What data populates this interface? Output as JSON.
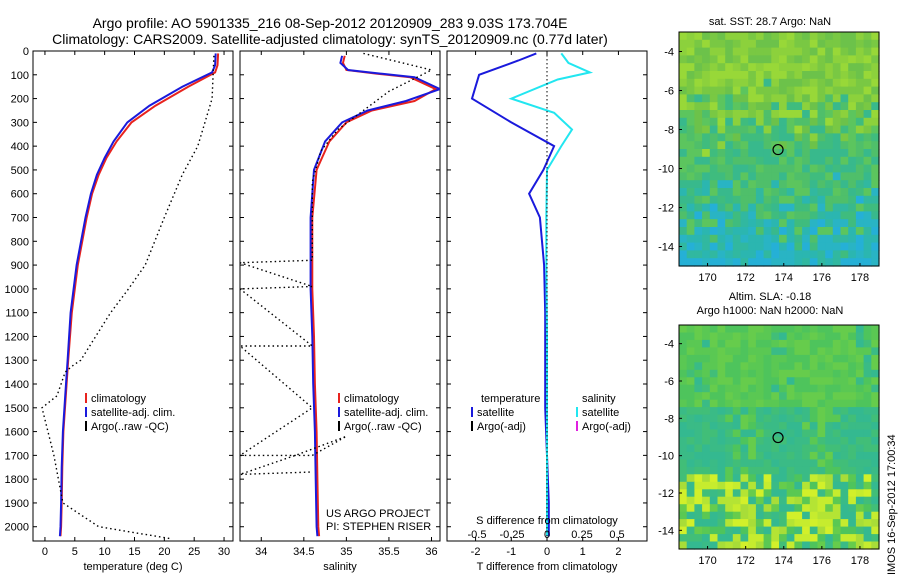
{
  "title": {
    "line1": "Argo profile: AO 5901335_216 08-Sep-2012 20120909_283 9.03S 173.704E",
    "line2": "Climatology: CARS2009. Satellite-adjusted climatology: synTS_20120909.nc (0.77d later)"
  },
  "colors": {
    "climatology": "#e8231e",
    "satellite": "#1a1adc",
    "argo": "#000000",
    "satellite_s": "#22e6f0",
    "argo_s": "#e020e0"
  },
  "chart_data": [
    {
      "type": "line",
      "id": "temperature",
      "xlabel": "temperature (deg C)",
      "ylabel": "",
      "xlim": [
        -2,
        31.5
      ],
      "ylim": [
        2060,
        0
      ],
      "xticks": [
        0,
        5,
        10,
        15,
        20,
        25,
        30
      ],
      "yticks": [
        0,
        100,
        200,
        300,
        400,
        500,
        600,
        700,
        800,
        900,
        1000,
        1100,
        1200,
        1300,
        1400,
        1500,
        1600,
        1700,
        1800,
        1900,
        2000
      ],
      "series": [
        {
          "name": "climatology",
          "style": "solid",
          "color": "#e8231e",
          "x": [
            29.0,
            28.9,
            28.5,
            24.0,
            18.5,
            14.5,
            12.0,
            10.3,
            9.0,
            7.9,
            7.0,
            5.5,
            4.5,
            3.9,
            3.5,
            3.1,
            2.9,
            2.8,
            2.7,
            2.6
          ],
          "y": [
            10,
            60,
            90,
            150,
            230,
            300,
            380,
            450,
            520,
            600,
            700,
            900,
            1100,
            1300,
            1450,
            1600,
            1750,
            1900,
            2000,
            2040
          ]
        },
        {
          "name": "satellite-adj. clim.",
          "style": "solid",
          "color": "#1a1adc",
          "x": [
            28.6,
            28.5,
            28.0,
            23.0,
            17.5,
            13.8,
            11.5,
            10.0,
            8.7,
            7.7,
            6.8,
            5.3,
            4.3,
            3.8,
            3.4,
            3.0,
            2.8,
            2.7,
            2.6,
            2.5
          ],
          "y": [
            10,
            60,
            90,
            150,
            230,
            300,
            380,
            450,
            520,
            600,
            700,
            900,
            1100,
            1300,
            1450,
            1600,
            1750,
            1900,
            2000,
            2040
          ]
        },
        {
          "name": "Argo(..raw -QC)",
          "style": "dotted",
          "color": "#000000",
          "x": [
            28.3,
            28.0,
            25.6,
            23.0,
            20.0,
            16.8,
            14.0,
            11.0,
            8.5,
            6.0,
            4.8,
            3.4,
            2.0,
            -0.5,
            1.5,
            3.0,
            9.0,
            21.0
          ],
          "y": [
            20,
            200,
            400,
            520,
            700,
            900,
            1000,
            1100,
            1200,
            1300,
            1320,
            1350,
            1450,
            1500,
            1700,
            1900,
            2000,
            2050
          ]
        }
      ]
    },
    {
      "type": "line",
      "id": "salinity",
      "xlabel": "salinity",
      "ylabel": "",
      "xlim": [
        33.75,
        36.1
      ],
      "ylim": [
        2060,
        0
      ],
      "xticks": [
        34,
        34.5,
        35,
        35.5,
        36
      ],
      "xticklabels": [
        "34",
        "34.5",
        "35",
        "35.5",
        "36"
      ],
      "series": [
        {
          "name": "climatology",
          "style": "solid",
          "color": "#e8231e",
          "x": [
            34.98,
            34.96,
            35.0,
            35.35,
            35.75,
            36.05,
            35.8,
            35.3,
            35.0,
            34.8,
            34.65,
            34.6,
            34.6,
            34.6,
            34.62,
            34.63,
            34.65,
            34.66,
            34.67,
            34.68
          ],
          "y": [
            20,
            50,
            80,
            95,
            110,
            160,
            210,
            250,
            300,
            380,
            500,
            700,
            850,
            1000,
            1200,
            1400,
            1600,
            1800,
            2000,
            2040
          ]
        },
        {
          "name": "satellite-adj. clim.",
          "style": "solid",
          "color": "#1a1adc",
          "x": [
            34.95,
            34.93,
            35.02,
            35.4,
            35.8,
            36.1,
            35.7,
            35.25,
            34.95,
            34.75,
            34.62,
            34.58,
            34.58,
            34.58,
            34.6,
            34.61,
            34.63,
            34.64,
            34.65,
            34.66
          ],
          "y": [
            20,
            50,
            80,
            95,
            110,
            160,
            210,
            250,
            300,
            380,
            500,
            700,
            850,
            1000,
            1200,
            1400,
            1600,
            1800,
            2000,
            2040
          ]
        },
        {
          "name": "Argo(..raw -QC)",
          "style": "dotted",
          "color": "#000000",
          "x": [
            35.2,
            36.0,
            35.5,
            35.2,
            34.9,
            34.7,
            34.6,
            34.6,
            34.6,
            34.6,
            34.6,
            33.75,
            34.6,
            33.75,
            34.6,
            33.75,
            34.6,
            33.75,
            34.6,
            35.0,
            34.4,
            33.75,
            34.6
          ],
          "y": [
            10,
            80,
            170,
            250,
            330,
            420,
            550,
            700,
            800,
            870,
            880,
            890,
            990,
            1000,
            1240,
            1240,
            1500,
            1700,
            1700,
            1620,
            1700,
            1780,
            1770
          ]
        }
      ]
    },
    {
      "type": "line",
      "id": "difference",
      "xlabel": "T difference from climatology",
      "xlabel_top": "S difference from climatology",
      "xlim": [
        -2.8,
        2.8
      ],
      "ylim": [
        2060,
        0
      ],
      "xticks": [
        -2,
        -1,
        0,
        1,
        2
      ],
      "xticks_top": [
        -0.5,
        -0.25,
        0,
        0.25,
        0.5
      ],
      "series": [
        {
          "name": "satellite",
          "group": "temperature",
          "style": "solid",
          "color": "#1a1adc",
          "x": [
            -0.3,
            -0.8,
            -1.9,
            -2.1,
            -1.0,
            0.2,
            -0.1,
            -0.5,
            -0.2,
            -0.08,
            -0.05,
            -0.05,
            -0.05,
            0.0,
            0.05,
            0.05,
            0.05
          ],
          "y": [
            10,
            40,
            100,
            200,
            300,
            400,
            500,
            600,
            700,
            900,
            1100,
            1300,
            1500,
            1700,
            1900,
            2000,
            2040
          ]
        },
        {
          "name": "satellite",
          "group": "salinity",
          "style": "solid",
          "color": "#22e6f0",
          "x": [
            0.4,
            0.6,
            1.2,
            0.3,
            -1.0,
            0.2,
            0.7,
            0.4,
            0.0,
            -0.02,
            -0.02,
            0.0,
            0.0,
            0.0,
            0.0
          ],
          "y": [
            10,
            50,
            90,
            120,
            200,
            260,
            330,
            400,
            500,
            700,
            900,
            1200,
            1500,
            1800,
            2040
          ]
        }
      ]
    }
  ],
  "legend": {
    "climatology": "climatology",
    "satellite": "satellite-adj. clim.",
    "argo": "Argo(..raw -QC)"
  },
  "diff_legend": {
    "temperature": "temperature",
    "salinity": "salinity",
    "satellite": "satellite",
    "argo_adj": "Argo(-adj)"
  },
  "credits": {
    "line1": "US ARGO PROJECT",
    "line2": "PI: STEPHEN RISER"
  },
  "maps": [
    {
      "title": "sat. SST: 28.7  Argo: NaN",
      "title2": "",
      "xlim": [
        168.5,
        179
      ],
      "ylim": [
        -15,
        -3
      ],
      "xticks": [
        170,
        172,
        174,
        176,
        178
      ],
      "yticks": [
        -4,
        -6,
        -8,
        -10,
        -12,
        -14
      ],
      "marker": {
        "lon": 173.7,
        "lat": -9.03
      }
    },
    {
      "title": "Altim. SLA: -0.18",
      "title2": "Argo h1000: NaN  h2000: NaN",
      "xlim": [
        168.5,
        179
      ],
      "ylim": [
        -15,
        -3
      ],
      "xticks": [
        170,
        172,
        174,
        176,
        178
      ],
      "yticks": [
        -4,
        -6,
        -8,
        -10,
        -12,
        -14
      ],
      "marker": {
        "lon": 173.7,
        "lat": -9.03
      }
    }
  ],
  "stamp": "IMOS 16-Sep-2012 17:00:34"
}
